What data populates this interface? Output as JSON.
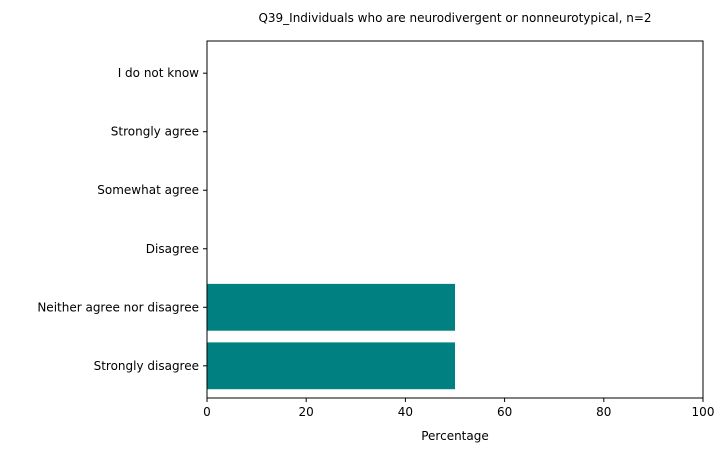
{
  "chart_data": {
    "type": "bar",
    "orientation": "horizontal",
    "title": "Q39_Individuals who are neurodivergent or nonneurotypical, n=2",
    "xlabel": "Percentage",
    "ylabel": "",
    "xlim": [
      0,
      100
    ],
    "xticks": [
      0,
      20,
      40,
      60,
      80,
      100
    ],
    "categories": [
      "Strongly disagree",
      "Neither agree nor disagree",
      "Disagree",
      "Somewhat agree",
      "Strongly agree",
      "I do not know"
    ],
    "values": [
      50,
      50,
      0,
      0,
      0,
      0
    ],
    "bar_color": "#008080",
    "grid": false,
    "legend": "none"
  }
}
